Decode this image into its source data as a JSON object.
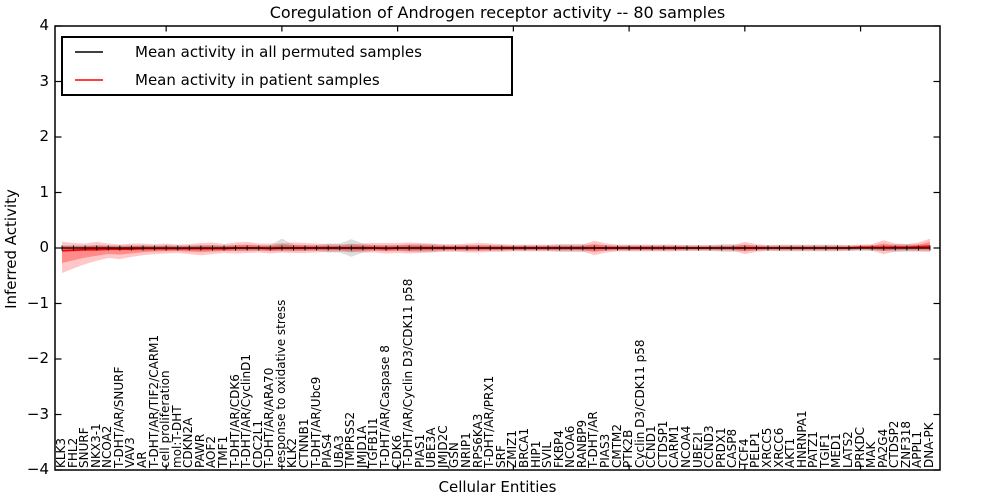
{
  "chart_data": {
    "type": "line",
    "title": "Coregulation of Androgen receptor activity -- 80 samples",
    "xlabel": "Cellular Entities",
    "ylabel": "Inferred Activity",
    "ylim": [
      -4,
      4
    ],
    "grid": false,
    "legend_position": "upper left",
    "legend": [
      {
        "label": "Mean activity in all permuted samples",
        "color": "#000000"
      },
      {
        "label": "Mean activity in patient samples",
        "color": "#ff0000"
      }
    ],
    "colors": {
      "permuted_line": "#000000",
      "patient_line": "#ff0000",
      "patient_band": "#ff0000",
      "permuted_band": "#000000"
    },
    "ytick_values": [
      -4,
      -3,
      -2,
      -1,
      0,
      1,
      2,
      3,
      4
    ],
    "ytick_labels": [
      "−4",
      "−3",
      "−2",
      "−1",
      "0",
      "1",
      "2",
      "3",
      "4"
    ],
    "major_tick_entity_indices": [
      10,
      20,
      30,
      40,
      50,
      60,
      70
    ],
    "entities": [
      "KLK3",
      "FHL2",
      "SNURF",
      "NKX3-1",
      "NCOA2",
      "T-DHT/AR/SNURF",
      "VAV3",
      "AR",
      "T-DHT/AR/TIF2/CARM1",
      "cell proliferation",
      "mol:T-DHT",
      "CDKN2A",
      "PAWR",
      "AOF2",
      "TMF1",
      "T-DHT/AR/CDK6",
      "T-DHT/AR/CyclinD1",
      "CDC2L1",
      "T-DHT/AR/ARA70",
      "response to oxidative stress",
      "KLK2",
      "CTNNB1",
      "T-DHT/AR/Ubc9",
      "PIAS4",
      "UBA3",
      "TMPRSS2",
      "JMJD1A",
      "TGFB1I1",
      "T-DHT/AR/Caspase 8",
      "CDK6",
      "T-DHT/AR/Cyclin D3/CDK11 p58",
      "PIAS1",
      "UBE3A",
      "JMJD2C",
      "GSN",
      "NRIP1",
      "RPS6KA3",
      "T-DHT/AR/PRX1",
      "SRF",
      "ZMIZ1",
      "BRCA1",
      "HIP1",
      "SVIL",
      "FKBP4",
      "NCOA6",
      "RANBP9",
      "T-DHT/AR",
      "PIAS3",
      "CMTM2",
      "PTK2B",
      "Cyclin D3/CDK11 p58",
      "CCND1",
      "CTDSP1",
      "CARM1",
      "NCOA4",
      "UBE2I",
      "CCND3",
      "PRDX1",
      "CASP8",
      "TCF4",
      "PELP1",
      "XRCC5",
      "XRCC6",
      "AKT1",
      "HNRNPA1",
      "PATZ1",
      "TGIF1",
      "MED1",
      "LATS2",
      "PRKDC",
      "MAK",
      "PA2G4",
      "CTDSP2",
      "ZNF318",
      "APPL1",
      "DNA-PK"
    ],
    "series": [
      {
        "name": "Mean activity in all permuted samples",
        "values": [
          0,
          0,
          0,
          0,
          0,
          0,
          0,
          0,
          0,
          0,
          0,
          0,
          0,
          0,
          0,
          0,
          0,
          0,
          0,
          0,
          0,
          0,
          0,
          0,
          0,
          0,
          0,
          0,
          0,
          0,
          0,
          0,
          0,
          0,
          0,
          0,
          0,
          0,
          0,
          0,
          0,
          0,
          0,
          0,
          0,
          0,
          0,
          0,
          0,
          0,
          0,
          0,
          0,
          0,
          0,
          0,
          0,
          0,
          0,
          0,
          0,
          0,
          0,
          0,
          0,
          0,
          0,
          0,
          0,
          0,
          0,
          0,
          0,
          0,
          0,
          0
        ]
      },
      {
        "name": "Mean activity in patient samples",
        "values": [
          -0.05,
          -0.04,
          -0.03,
          -0.03,
          -0.02,
          -0.02,
          -0.02,
          -0.01,
          -0.01,
          -0.01,
          -0.01,
          -0.01,
          -0.01,
          -0.01,
          -0.01,
          0,
          0,
          0,
          -0.01,
          0,
          0,
          0,
          0,
          0,
          0,
          0,
          0,
          0,
          -0.01,
          0,
          0,
          0,
          0,
          0,
          0,
          0,
          0,
          0,
          0,
          0,
          0,
          0,
          0,
          0,
          0,
          0,
          0,
          0,
          0,
          0,
          0,
          0,
          0,
          0,
          0,
          0,
          0,
          0,
          0,
          0,
          0,
          0,
          0,
          0,
          0,
          0,
          0,
          0,
          0,
          0.01,
          0.01,
          0.01,
          0.01,
          0.01,
          0.02,
          0.03
        ]
      }
    ],
    "patient_band_upper_halfwidth": [
      0.16,
      0.13,
      0.11,
      0.14,
      0.1,
      0.08,
      0.1,
      0.09,
      0.08,
      0.09,
      0.07,
      0.08,
      0.1,
      0.11,
      0.08,
      0.1,
      0.11,
      0.08,
      0.09,
      0.08,
      0.1,
      0.09,
      0.08,
      0.07,
      0.07,
      0.07,
      0.08,
      0.09,
      0.1,
      0.09,
      0.1,
      0.09,
      0.08,
      0.07,
      0.07,
      0.08,
      0.09,
      0.08,
      0.07,
      0.06,
      0.06,
      0.06,
      0.06,
      0.06,
      0.06,
      0.06,
      0.13,
      0.08,
      0.06,
      0.06,
      0.06,
      0.06,
      0.06,
      0.06,
      0.05,
      0.05,
      0.05,
      0.05,
      0.05,
      0.11,
      0.07,
      0.05,
      0.05,
      0.05,
      0.05,
      0.05,
      0.05,
      0.05,
      0.05,
      0.05,
      0.06,
      0.13,
      0.07,
      0.06,
      0.08,
      0.14
    ],
    "patient_band_lower_halfwidth": [
      0.4,
      0.33,
      0.26,
      0.2,
      0.16,
      0.18,
      0.14,
      0.12,
      0.1,
      0.09,
      0.08,
      0.1,
      0.12,
      0.1,
      0.08,
      0.1,
      0.09,
      0.08,
      0.09,
      0.08,
      0.09,
      0.09,
      0.08,
      0.07,
      0.07,
      0.07,
      0.08,
      0.08,
      0.09,
      0.09,
      0.1,
      0.09,
      0.08,
      0.07,
      0.07,
      0.08,
      0.08,
      0.07,
      0.07,
      0.06,
      0.06,
      0.06,
      0.06,
      0.06,
      0.06,
      0.06,
      0.13,
      0.08,
      0.06,
      0.06,
      0.06,
      0.06,
      0.06,
      0.06,
      0.05,
      0.05,
      0.05,
      0.05,
      0.05,
      0.11,
      0.07,
      0.05,
      0.05,
      0.05,
      0.05,
      0.05,
      0.05,
      0.05,
      0.05,
      0.05,
      0.06,
      0.12,
      0.07,
      0.06,
      0.08,
      0.1
    ],
    "permuted_band_upper_halfwidth": [
      0.05,
      0.05,
      0.05,
      0.05,
      0.05,
      0.05,
      0.05,
      0.05,
      0.05,
      0.05,
      0.05,
      0.05,
      0.05,
      0.05,
      0.05,
      0.05,
      0.05,
      0.05,
      0.05,
      0.17,
      0.06,
      0.05,
      0.05,
      0.08,
      0.08,
      0.16,
      0.08,
      0.05,
      0.05,
      0.05,
      0.07,
      0.07,
      0.07,
      0.05,
      0.05,
      0.05,
      0.05,
      0.05,
      0.05,
      0.05,
      0.05,
      0.05,
      0.05,
      0.07,
      0.07,
      0.07,
      0.05,
      0.05,
      0.05,
      0.05,
      0.05,
      0.05,
      0.05,
      0.05,
      0.05,
      0.05,
      0.05,
      0.07,
      0.07,
      0.05,
      0.05,
      0.05,
      0.06,
      0.06,
      0.06,
      0.06,
      0.06,
      0.06,
      0.05,
      0.05,
      0.05,
      0.05,
      0.07,
      0.07,
      0.06,
      0.06
    ],
    "permuted_band_lower_halfwidth": [
      0.05,
      0.05,
      0.05,
      0.05,
      0.05,
      0.05,
      0.05,
      0.05,
      0.05,
      0.05,
      0.05,
      0.05,
      0.05,
      0.05,
      0.05,
      0.05,
      0.05,
      0.05,
      0.05,
      0.06,
      0.06,
      0.05,
      0.05,
      0.08,
      0.08,
      0.16,
      0.08,
      0.05,
      0.05,
      0.05,
      0.07,
      0.07,
      0.07,
      0.05,
      0.05,
      0.05,
      0.05,
      0.05,
      0.05,
      0.05,
      0.05,
      0.05,
      0.05,
      0.07,
      0.07,
      0.07,
      0.05,
      0.05,
      0.05,
      0.05,
      0.05,
      0.05,
      0.05,
      0.05,
      0.05,
      0.05,
      0.05,
      0.07,
      0.07,
      0.05,
      0.05,
      0.05,
      0.06,
      0.06,
      0.06,
      0.06,
      0.06,
      0.06,
      0.05,
      0.05,
      0.05,
      0.05,
      0.07,
      0.07,
      0.06,
      0.06
    ]
  }
}
